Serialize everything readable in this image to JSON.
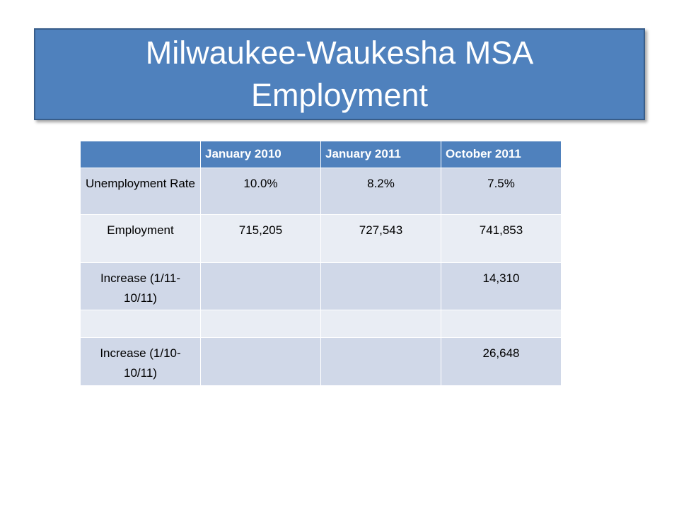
{
  "title_lines": [
    "Milwaukee-Waukesha MSA",
    "Employment"
  ],
  "table": {
    "columns": [
      "January 2010",
      "January 2011",
      "October 2011"
    ],
    "rows": [
      {
        "label": "Unemployment Rate",
        "cells": [
          "10.0%",
          "8.2%",
          "7.5%"
        ]
      },
      {
        "label": "Employment",
        "cells": [
          "715,205",
          "727,543",
          "741,853"
        ]
      },
      {
        "label": "Increase (1/11-10/11)",
        "cells": [
          null,
          null,
          "14,310"
        ]
      },
      {
        "label": null,
        "cells": [
          null,
          null,
          null
        ]
      },
      {
        "label": "Increase (1/10-10/11)",
        "cells": [
          null,
          null,
          "26,648"
        ]
      }
    ]
  }
}
